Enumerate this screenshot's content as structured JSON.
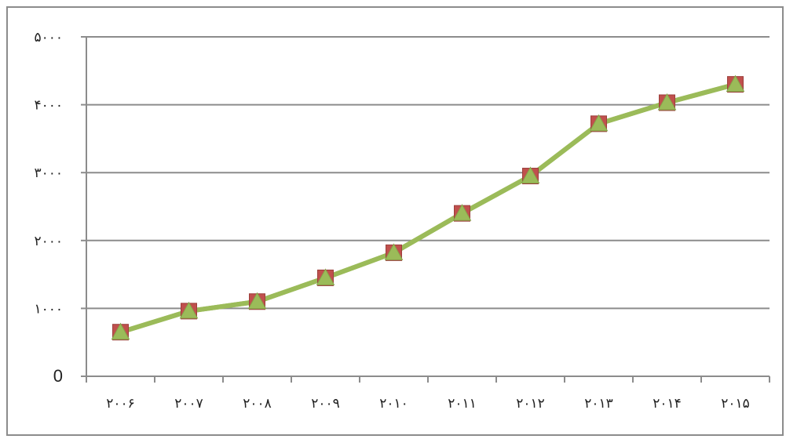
{
  "chart_data": {
    "type": "line",
    "title": "",
    "xlabel": "",
    "ylabel": "",
    "categories": [
      "۲۰۰۶",
      "۲۰۰۷",
      "۲۰۰۸",
      "۲۰۰۹",
      "۲۰۱۰",
      "۲۰۱۱",
      "۲۰۱۲",
      "۲۰۱۳",
      "۲۰۱۴",
      "۲۰۱۵"
    ],
    "y_tick_values": [
      0,
      1000,
      2000,
      3000,
      4000,
      5000
    ],
    "y_tick_labels": [
      "0",
      "۱۰۰۰",
      "۲۰۰۰",
      "۳۰۰۰",
      "۴۰۰۰",
      "۵۰۰۰"
    ],
    "ylim": [
      0,
      5000
    ],
    "grid": true,
    "legend": "none",
    "series": [
      {
        "values": [
          650,
          960,
          1100,
          1450,
          1820,
          2400,
          2950,
          3720,
          4030,
          4300
        ],
        "color": "#9bbb59",
        "marker": "square",
        "marker_color": "#c0504d"
      },
      {
        "values": [
          650,
          960,
          1100,
          1450,
          1820,
          2400,
          2950,
          3720,
          4030,
          4300
        ],
        "color": "#9bbb59",
        "marker": "triangle",
        "marker_color": "#9bbb59"
      }
    ]
  }
}
